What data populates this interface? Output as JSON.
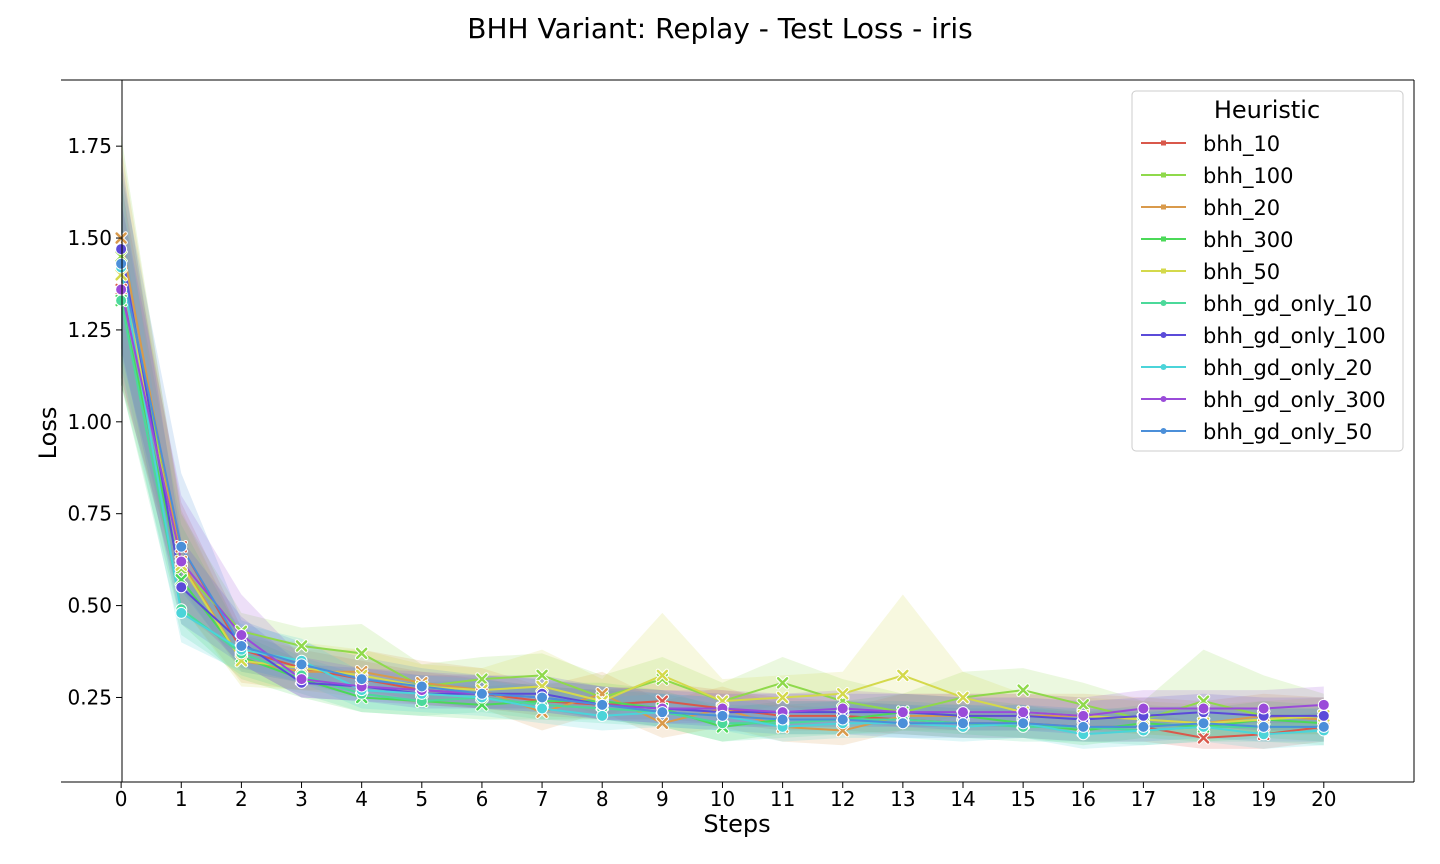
{
  "chart_data": {
    "type": "line",
    "title": "BHH Variant: Replay - Test Loss - iris",
    "xlabel": "Steps",
    "ylabel": "Loss",
    "x": [
      0,
      1,
      2,
      3,
      4,
      5,
      6,
      7,
      8,
      9,
      10,
      11,
      12,
      13,
      14,
      15,
      16,
      17,
      18,
      19,
      20
    ],
    "xlim": [
      -1,
      21.5
    ],
    "ylim": [
      0.02,
      1.93
    ],
    "yticks": [
      0.25,
      0.5,
      0.75,
      1.0,
      1.25,
      1.5,
      1.75
    ],
    "ytick_labels": [
      "0.25",
      "0.50",
      "0.75",
      "1.00",
      "1.25",
      "1.50",
      "1.75"
    ],
    "legend_title": "Heuristic",
    "legend_position": "top-right",
    "grid": false,
    "series": [
      {
        "name": "bhh_10",
        "color": "#d9584b",
        "marker": "x",
        "values": [
          1.36,
          0.66,
          0.38,
          0.33,
          0.3,
          0.27,
          0.26,
          0.24,
          0.23,
          0.24,
          0.22,
          0.2,
          0.2,
          0.19,
          0.18,
          0.18,
          0.17,
          0.17,
          0.14,
          0.15,
          0.17
        ],
        "band": [
          [
            1.1,
            1.65
          ],
          [
            0.55,
            0.78
          ],
          [
            0.32,
            0.44
          ],
          [
            0.29,
            0.38
          ],
          [
            0.26,
            0.35
          ],
          [
            0.23,
            0.32
          ],
          [
            0.22,
            0.3
          ],
          [
            0.2,
            0.28
          ],
          [
            0.19,
            0.27
          ],
          [
            0.19,
            0.29
          ],
          [
            0.18,
            0.27
          ],
          [
            0.16,
            0.25
          ],
          [
            0.16,
            0.24
          ],
          [
            0.15,
            0.23
          ],
          [
            0.14,
            0.22
          ],
          [
            0.14,
            0.22
          ],
          [
            0.13,
            0.21
          ],
          [
            0.13,
            0.21
          ],
          [
            0.11,
            0.18
          ],
          [
            0.11,
            0.19
          ],
          [
            0.13,
            0.21
          ]
        ]
      },
      {
        "name": "bhh_100",
        "color": "#8fd94b",
        "marker": "x",
        "values": [
          1.45,
          0.6,
          0.43,
          0.39,
          0.37,
          0.28,
          0.3,
          0.31,
          0.25,
          0.3,
          0.24,
          0.29,
          0.24,
          0.21,
          0.25,
          0.27,
          0.23,
          0.19,
          0.24,
          0.2,
          0.2
        ],
        "band": [
          [
            1.15,
            1.78
          ],
          [
            0.48,
            0.75
          ],
          [
            0.36,
            0.48
          ],
          [
            0.33,
            0.44
          ],
          [
            0.3,
            0.45
          ],
          [
            0.24,
            0.34
          ],
          [
            0.25,
            0.36
          ],
          [
            0.25,
            0.37
          ],
          [
            0.2,
            0.31
          ],
          [
            0.24,
            0.36
          ],
          [
            0.2,
            0.29
          ],
          [
            0.23,
            0.36
          ],
          [
            0.19,
            0.3
          ],
          [
            0.17,
            0.26
          ],
          [
            0.2,
            0.32
          ],
          [
            0.21,
            0.33
          ],
          [
            0.18,
            0.29
          ],
          [
            0.15,
            0.24
          ],
          [
            0.18,
            0.38
          ],
          [
            0.15,
            0.31
          ],
          [
            0.15,
            0.26
          ]
        ]
      },
      {
        "name": "bhh_20",
        "color": "#d99a4b",
        "marker": "x",
        "values": [
          1.5,
          0.62,
          0.35,
          0.32,
          0.32,
          0.29,
          0.27,
          0.21,
          0.26,
          0.18,
          0.22,
          0.17,
          0.16,
          0.2,
          0.2,
          0.2,
          0.2,
          0.19,
          0.18,
          0.2,
          0.19
        ],
        "band": [
          [
            1.2,
            1.75
          ],
          [
            0.5,
            0.76
          ],
          [
            0.29,
            0.42
          ],
          [
            0.27,
            0.38
          ],
          [
            0.27,
            0.38
          ],
          [
            0.24,
            0.35
          ],
          [
            0.22,
            0.33
          ],
          [
            0.16,
            0.28
          ],
          [
            0.21,
            0.32
          ],
          [
            0.14,
            0.24
          ],
          [
            0.17,
            0.28
          ],
          [
            0.13,
            0.23
          ],
          [
            0.12,
            0.22
          ],
          [
            0.16,
            0.26
          ],
          [
            0.16,
            0.26
          ],
          [
            0.16,
            0.26
          ],
          [
            0.16,
            0.26
          ],
          [
            0.15,
            0.25
          ],
          [
            0.14,
            0.24
          ],
          [
            0.15,
            0.26
          ],
          [
            0.15,
            0.25
          ]
        ]
      },
      {
        "name": "bhh_300",
        "color": "#4bd958",
        "marker": "x",
        "values": [
          1.33,
          0.57,
          0.36,
          0.3,
          0.25,
          0.24,
          0.23,
          0.24,
          0.24,
          0.22,
          0.17,
          0.19,
          0.19,
          0.21,
          0.2,
          0.18,
          0.16,
          0.18,
          0.17,
          0.19,
          0.18
        ],
        "band": [
          [
            1.1,
            1.6
          ],
          [
            0.45,
            0.72
          ],
          [
            0.3,
            0.42
          ],
          [
            0.25,
            0.35
          ],
          [
            0.21,
            0.3
          ],
          [
            0.2,
            0.29
          ],
          [
            0.19,
            0.28
          ],
          [
            0.19,
            0.29
          ],
          [
            0.19,
            0.29
          ],
          [
            0.17,
            0.27
          ],
          [
            0.13,
            0.22
          ],
          [
            0.15,
            0.24
          ],
          [
            0.15,
            0.24
          ],
          [
            0.16,
            0.26
          ],
          [
            0.15,
            0.25
          ],
          [
            0.14,
            0.23
          ],
          [
            0.12,
            0.21
          ],
          [
            0.14,
            0.23
          ],
          [
            0.13,
            0.22
          ],
          [
            0.14,
            0.24
          ],
          [
            0.13,
            0.23
          ]
        ]
      },
      {
        "name": "bhh_50",
        "color": "#d4d94b",
        "marker": "x",
        "values": [
          1.4,
          0.61,
          0.35,
          0.33,
          0.31,
          0.28,
          0.27,
          0.28,
          0.24,
          0.31,
          0.24,
          0.25,
          0.26,
          0.31,
          0.25,
          0.21,
          0.2,
          0.19,
          0.18,
          0.19,
          0.2
        ],
        "band": [
          [
            1.12,
            1.7
          ],
          [
            0.5,
            0.75
          ],
          [
            0.28,
            0.42
          ],
          [
            0.27,
            0.4
          ],
          [
            0.25,
            0.38
          ],
          [
            0.23,
            0.34
          ],
          [
            0.22,
            0.33
          ],
          [
            0.22,
            0.38
          ],
          [
            0.19,
            0.3
          ],
          [
            0.22,
            0.48
          ],
          [
            0.19,
            0.3
          ],
          [
            0.2,
            0.31
          ],
          [
            0.21,
            0.32
          ],
          [
            0.22,
            0.53
          ],
          [
            0.2,
            0.32
          ],
          [
            0.17,
            0.26
          ],
          [
            0.16,
            0.25
          ],
          [
            0.15,
            0.24
          ],
          [
            0.14,
            0.23
          ],
          [
            0.15,
            0.24
          ],
          [
            0.16,
            0.25
          ]
        ]
      },
      {
        "name": "bhh_gd_only_10",
        "color": "#4bd99a",
        "marker": "o",
        "values": [
          1.33,
          0.49,
          0.37,
          0.31,
          0.26,
          0.24,
          0.25,
          0.23,
          0.22,
          0.21,
          0.18,
          0.18,
          0.19,
          0.19,
          0.18,
          0.17,
          0.17,
          0.16,
          0.17,
          0.17,
          0.17
        ],
        "band": [
          [
            1.1,
            1.55
          ],
          [
            0.42,
            0.58
          ],
          [
            0.31,
            0.44
          ],
          [
            0.26,
            0.36
          ],
          [
            0.21,
            0.31
          ],
          [
            0.2,
            0.29
          ],
          [
            0.21,
            0.3
          ],
          [
            0.19,
            0.28
          ],
          [
            0.18,
            0.27
          ],
          [
            0.17,
            0.26
          ],
          [
            0.13,
            0.23
          ],
          [
            0.14,
            0.23
          ],
          [
            0.15,
            0.24
          ],
          [
            0.15,
            0.24
          ],
          [
            0.14,
            0.23
          ],
          [
            0.13,
            0.22
          ],
          [
            0.13,
            0.22
          ],
          [
            0.12,
            0.21
          ],
          [
            0.13,
            0.22
          ],
          [
            0.13,
            0.22
          ],
          [
            0.12,
            0.22
          ]
        ]
      },
      {
        "name": "bhh_gd_only_100",
        "color": "#5b4bd9",
        "marker": "o",
        "values": [
          1.47,
          0.55,
          0.4,
          0.29,
          0.28,
          0.26,
          0.26,
          0.26,
          0.23,
          0.22,
          0.21,
          0.21,
          0.21,
          0.21,
          0.2,
          0.2,
          0.19,
          0.2,
          0.21,
          0.2,
          0.2
        ],
        "band": [
          [
            1.2,
            1.72
          ],
          [
            0.45,
            0.68
          ],
          [
            0.34,
            0.47
          ],
          [
            0.25,
            0.34
          ],
          [
            0.24,
            0.33
          ],
          [
            0.22,
            0.31
          ],
          [
            0.22,
            0.31
          ],
          [
            0.22,
            0.31
          ],
          [
            0.19,
            0.28
          ],
          [
            0.18,
            0.27
          ],
          [
            0.17,
            0.26
          ],
          [
            0.17,
            0.26
          ],
          [
            0.17,
            0.26
          ],
          [
            0.17,
            0.26
          ],
          [
            0.16,
            0.25
          ],
          [
            0.16,
            0.25
          ],
          [
            0.15,
            0.24
          ],
          [
            0.16,
            0.25
          ],
          [
            0.17,
            0.26
          ],
          [
            0.16,
            0.25
          ],
          [
            0.16,
            0.25
          ]
        ]
      },
      {
        "name": "bhh_gd_only_20",
        "color": "#4bd4d9",
        "marker": "o",
        "values": [
          1.42,
          0.48,
          0.38,
          0.35,
          0.27,
          0.26,
          0.25,
          0.22,
          0.2,
          0.21,
          0.2,
          0.17,
          0.18,
          0.18,
          0.17,
          0.18,
          0.15,
          0.16,
          0.17,
          0.15,
          0.16
        ],
        "band": [
          [
            1.15,
            1.66
          ],
          [
            0.4,
            0.57
          ],
          [
            0.32,
            0.45
          ],
          [
            0.29,
            0.41
          ],
          [
            0.22,
            0.32
          ],
          [
            0.21,
            0.31
          ],
          [
            0.2,
            0.3
          ],
          [
            0.18,
            0.27
          ],
          [
            0.16,
            0.25
          ],
          [
            0.17,
            0.26
          ],
          [
            0.16,
            0.25
          ],
          [
            0.13,
            0.22
          ],
          [
            0.14,
            0.23
          ],
          [
            0.14,
            0.23
          ],
          [
            0.13,
            0.22
          ],
          [
            0.14,
            0.23
          ],
          [
            0.11,
            0.2
          ],
          [
            0.12,
            0.21
          ],
          [
            0.13,
            0.22
          ],
          [
            0.11,
            0.2
          ],
          [
            0.12,
            0.21
          ]
        ]
      },
      {
        "name": "bhh_gd_only_300",
        "color": "#9a4bd9",
        "marker": "o",
        "values": [
          1.36,
          0.62,
          0.42,
          0.3,
          0.28,
          0.27,
          0.26,
          0.25,
          0.23,
          0.22,
          0.22,
          0.21,
          0.22,
          0.21,
          0.21,
          0.21,
          0.2,
          0.22,
          0.22,
          0.22,
          0.23
        ],
        "band": [
          [
            1.12,
            1.6
          ],
          [
            0.5,
            0.8
          ],
          [
            0.34,
            0.53
          ],
          [
            0.25,
            0.36
          ],
          [
            0.24,
            0.33
          ],
          [
            0.23,
            0.32
          ],
          [
            0.22,
            0.31
          ],
          [
            0.21,
            0.3
          ],
          [
            0.19,
            0.28
          ],
          [
            0.18,
            0.27
          ],
          [
            0.18,
            0.27
          ],
          [
            0.17,
            0.26
          ],
          [
            0.18,
            0.27
          ],
          [
            0.17,
            0.26
          ],
          [
            0.17,
            0.26
          ],
          [
            0.17,
            0.26
          ],
          [
            0.16,
            0.25
          ],
          [
            0.18,
            0.27
          ],
          [
            0.18,
            0.27
          ],
          [
            0.18,
            0.27
          ],
          [
            0.18,
            0.28
          ]
        ]
      },
      {
        "name": "bhh_gd_only_50",
        "color": "#4b8fd9",
        "marker": "o",
        "values": [
          1.43,
          0.66,
          0.39,
          0.34,
          0.3,
          0.28,
          0.26,
          0.25,
          0.23,
          0.21,
          0.2,
          0.19,
          0.19,
          0.18,
          0.18,
          0.18,
          0.17,
          0.17,
          0.18,
          0.17,
          0.17
        ],
        "band": [
          [
            1.18,
            1.68
          ],
          [
            0.54,
            0.86
          ],
          [
            0.33,
            0.46
          ],
          [
            0.29,
            0.4
          ],
          [
            0.25,
            0.36
          ],
          [
            0.24,
            0.33
          ],
          [
            0.22,
            0.31
          ],
          [
            0.21,
            0.3
          ],
          [
            0.19,
            0.28
          ],
          [
            0.17,
            0.26
          ],
          [
            0.16,
            0.25
          ],
          [
            0.15,
            0.24
          ],
          [
            0.15,
            0.24
          ],
          [
            0.14,
            0.23
          ],
          [
            0.14,
            0.23
          ],
          [
            0.14,
            0.23
          ],
          [
            0.13,
            0.22
          ],
          [
            0.13,
            0.22
          ],
          [
            0.14,
            0.23
          ],
          [
            0.13,
            0.22
          ],
          [
            0.13,
            0.22
          ]
        ]
      }
    ]
  }
}
